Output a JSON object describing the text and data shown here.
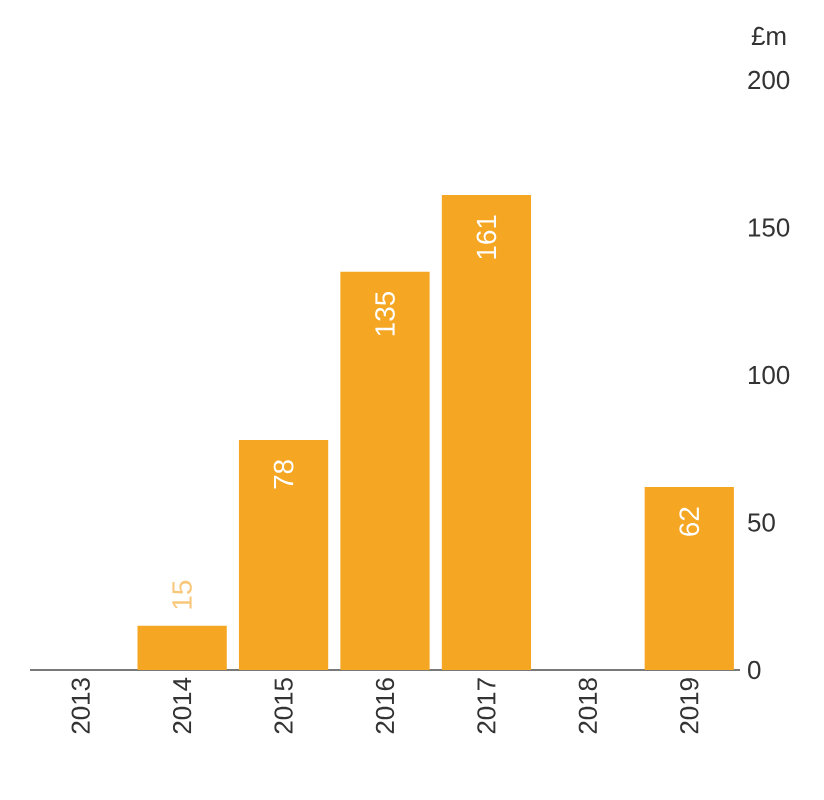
{
  "chart_data": {
    "type": "bar",
    "ylabel": "£m",
    "categories": [
      "2013",
      "2014",
      "2015",
      "2016",
      "2017",
      "2018",
      "2019"
    ],
    "values": [
      null,
      15,
      78,
      135,
      161,
      null,
      62
    ],
    "color": "#f5a623",
    "ylim": [
      0,
      200
    ],
    "yticks": [
      0,
      50,
      100,
      150,
      200
    ],
    "data_labels": true,
    "grid": false
  }
}
